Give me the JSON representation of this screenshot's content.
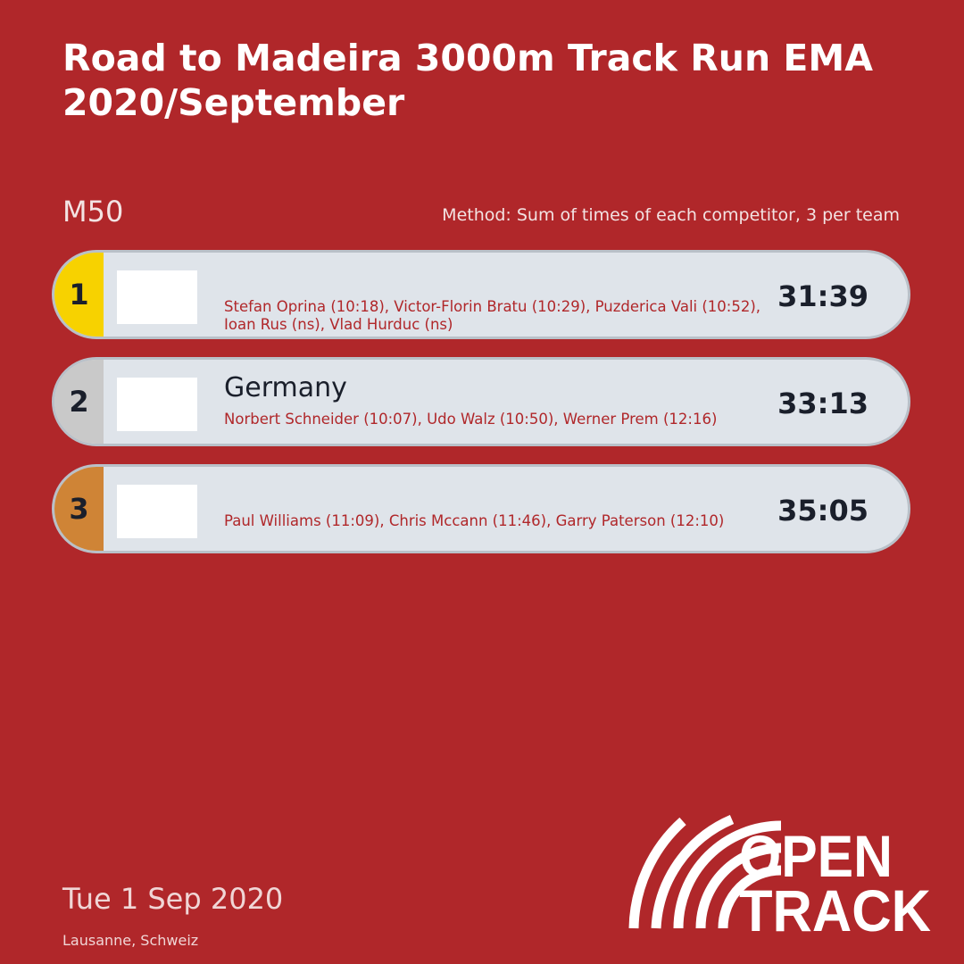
{
  "header": {
    "title_lines": [
      "Road to Madeira 3000m Track Run EMA",
      "2020/September"
    ]
  },
  "category": "M50",
  "method": "Method: Sum of times of each competitor, 3 per team",
  "results": [
    {
      "rank": "1",
      "badge_color": "#f7d200",
      "athletes": "Stefan Oprina (10:18), Victor-Florin Bratu (10:29), Puzderica Vali (10:52), Ioan Rus (ns), Vlad Hurduc (ns)",
      "time": "31:39"
    },
    {
      "rank": "2",
      "badge_color": "#c9c9c9",
      "team": "Germany",
      "athletes": "Norbert Schneider (10:07), Udo Walz (10:50), Werner Prem (12:16)",
      "time": "33:13"
    },
    {
      "rank": "3",
      "badge_color": "#cf8436",
      "athletes": "Paul Williams (11:09), Chris Mccann (11:46), Garry Paterson (12:10)",
      "time": "35:05"
    }
  ],
  "footer": {
    "date": "Tue 1 Sep 2020",
    "location": "Lausanne, Schweiz"
  },
  "logo": {
    "line1": "OPEN",
    "line2": "TRACK"
  }
}
